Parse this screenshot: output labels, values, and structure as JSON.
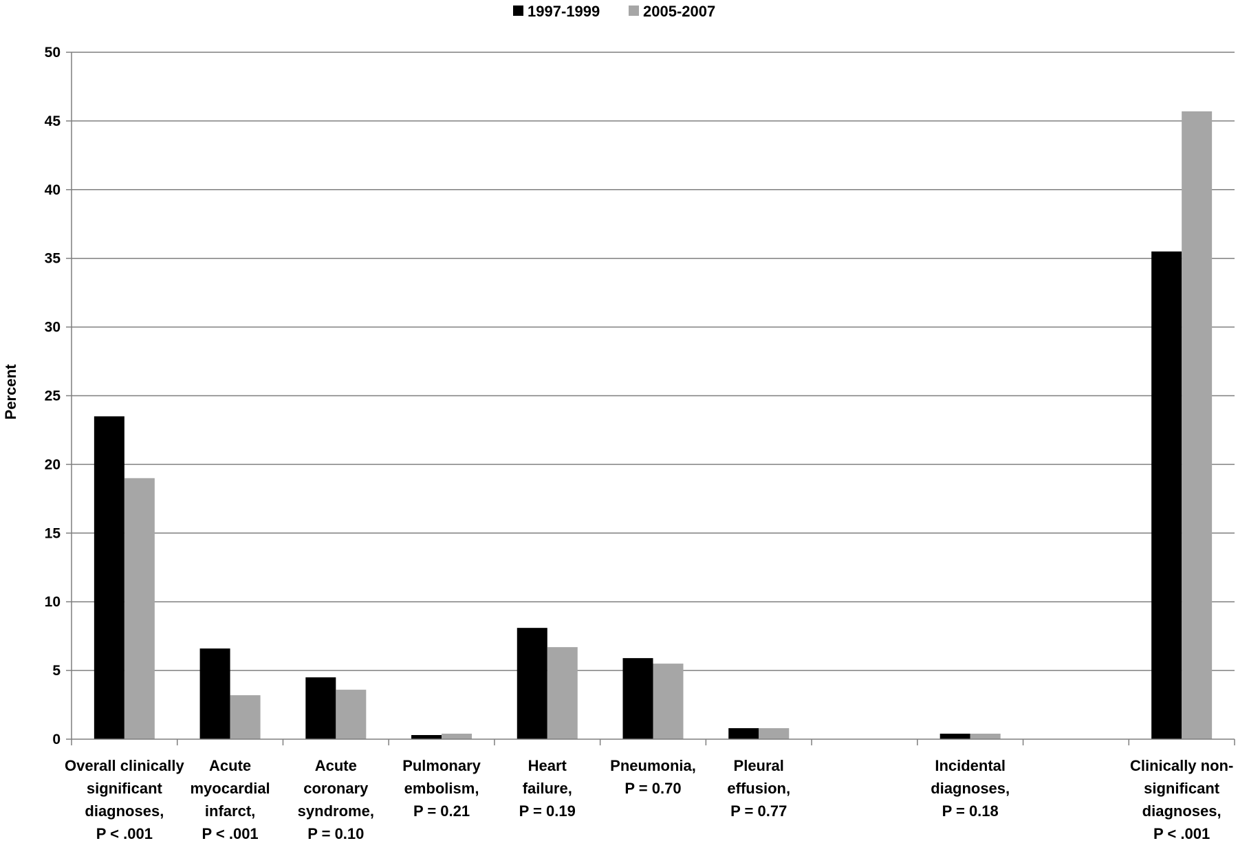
{
  "chart_data": {
    "type": "bar",
    "title": "",
    "xlabel": "",
    "ylabel": "Percent",
    "ylim": [
      0,
      50
    ],
    "yticks": [
      0,
      5,
      10,
      15,
      20,
      25,
      30,
      35,
      40,
      45,
      50
    ],
    "grid": true,
    "legend": "top",
    "categories": [
      [
        "Overall clinically",
        "significant",
        "diagnoses,",
        "P < .001"
      ],
      [
        "Acute",
        "myocardial",
        "infarct,",
        "P < .001"
      ],
      [
        "Acute",
        "coronary",
        "syndrome,",
        "P = 0.10"
      ],
      [
        "Pulmonary",
        "embolism,",
        "P = 0.21"
      ],
      [
        "Heart",
        "failure,",
        "P = 0.19"
      ],
      [
        "Pneumonia,",
        "P = 0.70"
      ],
      [
        "Pleural",
        "effusion,",
        "P = 0.77"
      ],
      [],
      [
        "Incidental",
        "diagnoses,",
        "P = 0.18"
      ],
      [],
      [
        "Clinically non-",
        "significant",
        "diagnoses,",
        "P < .001"
      ]
    ],
    "series": [
      {
        "name": "1997-1999",
        "color": "#000000",
        "values": [
          23.5,
          6.6,
          4.5,
          0.3,
          8.1,
          5.9,
          0.8,
          null,
          0.4,
          null,
          35.5
        ]
      },
      {
        "name": "2005-2007",
        "color": "#a6a6a6",
        "values": [
          19.0,
          3.2,
          3.6,
          0.4,
          6.7,
          5.5,
          0.8,
          null,
          0.4,
          null,
          45.7
        ]
      }
    ]
  }
}
